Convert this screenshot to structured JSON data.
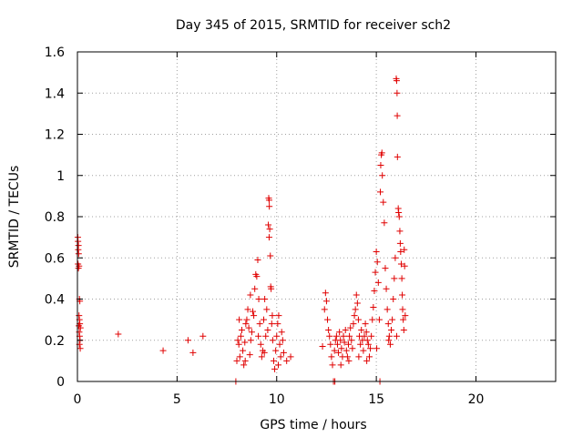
{
  "chart_data": {
    "type": "scatter",
    "title": "Day 345 of 2015, SRMTID for receiver sch2",
    "xlabel": "GPS time / hours",
    "ylabel": "SRMTID / TECUs",
    "xlim": [
      0,
      24
    ],
    "ylim": [
      0,
      1.6
    ],
    "xticks": [
      0,
      5,
      10,
      15,
      20
    ],
    "xtick_labels": [
      "0",
      "5",
      "10",
      "15",
      "20"
    ],
    "yticks": [
      0,
      0.2,
      0.4,
      0.6,
      0.8,
      1.0,
      1.2,
      1.4,
      1.6
    ],
    "ytick_labels": [
      "0",
      "0.2",
      "0.4",
      "0.6",
      "0.8",
      "1",
      "1.2",
      "1.4",
      "1.6"
    ],
    "grid": true,
    "marker": "plus",
    "color": "#e00000",
    "series": [
      {
        "name": "sch2",
        "points": [
          [
            0.02,
            0.7
          ],
          [
            0.03,
            0.68
          ],
          [
            0.05,
            0.66
          ],
          [
            0.04,
            0.64
          ],
          [
            0.06,
            0.62
          ],
          [
            0.03,
            0.57
          ],
          [
            0.08,
            0.56
          ],
          [
            0.05,
            0.55
          ],
          [
            0.1,
            0.4
          ],
          [
            0.12,
            0.39
          ],
          [
            0.08,
            0.32
          ],
          [
            0.1,
            0.3
          ],
          [
            0.12,
            0.28
          ],
          [
            0.07,
            0.27
          ],
          [
            0.15,
            0.26
          ],
          [
            0.09,
            0.24
          ],
          [
            0.11,
            0.22
          ],
          [
            0.13,
            0.2
          ],
          [
            0.1,
            0.18
          ],
          [
            0.14,
            0.16
          ],
          [
            2.05,
            0.23
          ],
          [
            4.3,
            0.15
          ],
          [
            5.55,
            0.2
          ],
          [
            5.8,
            0.14
          ],
          [
            6.3,
            0.22
          ],
          [
            7.95,
            0.0
          ],
          [
            8.0,
            0.1
          ],
          [
            8.05,
            0.2
          ],
          [
            8.1,
            0.18
          ],
          [
            8.15,
            0.12
          ],
          [
            8.2,
            0.22
          ],
          [
            8.25,
            0.25
          ],
          [
            8.3,
            0.15
          ],
          [
            8.35,
            0.08
          ],
          [
            8.4,
            0.19
          ],
          [
            8.45,
            0.28
          ],
          [
            8.5,
            0.3
          ],
          [
            8.55,
            0.35
          ],
          [
            8.6,
            0.26
          ],
          [
            8.65,
            0.13
          ],
          [
            8.7,
            0.2
          ],
          [
            8.75,
            0.24
          ],
          [
            8.8,
            0.34
          ],
          [
            8.85,
            0.32
          ],
          [
            8.9,
            0.45
          ],
          [
            8.95,
            0.52
          ],
          [
            9.0,
            0.51
          ],
          [
            9.05,
            0.59
          ],
          [
            9.1,
            0.4
          ],
          [
            9.15,
            0.28
          ],
          [
            9.2,
            0.18
          ],
          [
            9.25,
            0.12
          ],
          [
            9.3,
            0.15
          ],
          [
            9.35,
            0.3
          ],
          [
            9.4,
            0.4
          ],
          [
            9.45,
            0.22
          ],
          [
            9.5,
            0.35
          ],
          [
            9.55,
            0.25
          ],
          [
            9.6,
            0.89
          ],
          [
            9.62,
            0.88
          ],
          [
            9.63,
            0.85
          ],
          [
            9.58,
            0.76
          ],
          [
            9.65,
            0.74
          ],
          [
            9.62,
            0.7
          ],
          [
            9.68,
            0.61
          ],
          [
            9.7,
            0.46
          ],
          [
            9.72,
            0.45
          ],
          [
            9.75,
            0.28
          ],
          [
            9.8,
            0.2
          ],
          [
            9.85,
            0.1
          ],
          [
            9.9,
            0.06
          ],
          [
            9.95,
            0.15
          ],
          [
            10.0,
            0.22
          ],
          [
            10.05,
            0.28
          ],
          [
            10.1,
            0.32
          ],
          [
            10.15,
            0.18
          ],
          [
            10.2,
            0.12
          ],
          [
            10.25,
            0.24
          ],
          [
            10.3,
            0.2
          ],
          [
            10.35,
            0.14
          ],
          [
            10.5,
            0.1
          ],
          [
            10.7,
            0.12
          ],
          [
            8.12,
            0.3
          ],
          [
            8.42,
            0.1
          ],
          [
            8.68,
            0.42
          ],
          [
            9.08,
            0.22
          ],
          [
            9.38,
            0.14
          ],
          [
            9.78,
            0.32
          ],
          [
            10.08,
            0.08
          ],
          [
            12.3,
            0.17
          ],
          [
            12.4,
            0.35
          ],
          [
            12.45,
            0.43
          ],
          [
            12.5,
            0.39
          ],
          [
            12.55,
            0.3
          ],
          [
            12.6,
            0.25
          ],
          [
            12.65,
            0.22
          ],
          [
            12.7,
            0.18
          ],
          [
            12.75,
            0.12
          ],
          [
            12.8,
            0.08
          ],
          [
            12.85,
            0.0
          ],
          [
            12.9,
            0.15
          ],
          [
            12.95,
            0.2
          ],
          [
            13.0,
            0.22
          ],
          [
            13.05,
            0.18
          ],
          [
            13.1,
            0.14
          ],
          [
            13.15,
            0.24
          ],
          [
            13.2,
            0.2
          ],
          [
            13.25,
            0.16
          ],
          [
            13.3,
            0.12
          ],
          [
            13.35,
            0.22
          ],
          [
            13.4,
            0.19
          ],
          [
            13.45,
            0.25
          ],
          [
            13.5,
            0.15
          ],
          [
            13.55,
            0.12
          ],
          [
            13.6,
            0.18
          ],
          [
            13.65,
            0.22
          ],
          [
            13.7,
            0.26
          ],
          [
            13.75,
            0.2
          ],
          [
            13.8,
            0.16
          ],
          [
            13.85,
            0.28
          ],
          [
            13.9,
            0.32
          ],
          [
            13.95,
            0.35
          ],
          [
            14.0,
            0.42
          ],
          [
            14.05,
            0.38
          ],
          [
            14.1,
            0.3
          ],
          [
            14.15,
            0.22
          ],
          [
            14.2,
            0.18
          ],
          [
            14.25,
            0.25
          ],
          [
            14.3,
            0.2
          ],
          [
            14.35,
            0.15
          ],
          [
            14.4,
            0.22
          ],
          [
            14.45,
            0.28
          ],
          [
            14.5,
            0.24
          ],
          [
            14.55,
            0.2
          ],
          [
            14.6,
            0.18
          ],
          [
            14.65,
            0.12
          ],
          [
            14.7,
            0.16
          ],
          [
            14.75,
            0.22
          ],
          [
            14.8,
            0.3
          ],
          [
            14.85,
            0.36
          ],
          [
            14.9,
            0.44
          ],
          [
            14.95,
            0.53
          ],
          [
            15.0,
            0.63
          ],
          [
            15.05,
            0.58
          ],
          [
            15.1,
            0.48
          ],
          [
            15.15,
            0.3
          ],
          [
            15.2,
            0.92
          ],
          [
            15.25,
            1.1
          ],
          [
            15.28,
            1.11
          ],
          [
            15.22,
            1.05
          ],
          [
            15.3,
            1.0
          ],
          [
            15.35,
            0.87
          ],
          [
            15.4,
            0.77
          ],
          [
            15.45,
            0.55
          ],
          [
            15.5,
            0.45
          ],
          [
            15.55,
            0.35
          ],
          [
            15.6,
            0.28
          ],
          [
            15.65,
            0.22
          ],
          [
            15.7,
            0.18
          ],
          [
            15.75,
            0.25
          ],
          [
            15.8,
            0.3
          ],
          [
            15.85,
            0.4
          ],
          [
            15.9,
            0.5
          ],
          [
            15.95,
            0.6
          ],
          [
            16.0,
            1.47
          ],
          [
            16.02,
            1.46
          ],
          [
            16.04,
            1.4
          ],
          [
            16.05,
            1.29
          ],
          [
            16.06,
            1.09
          ],
          [
            16.1,
            0.84
          ],
          [
            16.12,
            0.82
          ],
          [
            16.15,
            0.8
          ],
          [
            16.18,
            0.73
          ],
          [
            16.2,
            0.67
          ],
          [
            16.22,
            0.63
          ],
          [
            16.25,
            0.57
          ],
          [
            16.28,
            0.5
          ],
          [
            16.3,
            0.42
          ],
          [
            16.32,
            0.35
          ],
          [
            16.35,
            0.3
          ],
          [
            16.38,
            0.25
          ],
          [
            16.4,
            0.64
          ],
          [
            16.42,
            0.56
          ],
          [
            16.45,
            0.32
          ],
          [
            15.18,
            0.0
          ],
          [
            12.92,
            0.0
          ],
          [
            13.22,
            0.08
          ],
          [
            13.62,
            0.1
          ],
          [
            14.12,
            0.12
          ],
          [
            14.52,
            0.1
          ],
          [
            15.02,
            0.16
          ],
          [
            15.62,
            0.2
          ],
          [
            16.02,
            0.22
          ]
        ]
      }
    ]
  }
}
